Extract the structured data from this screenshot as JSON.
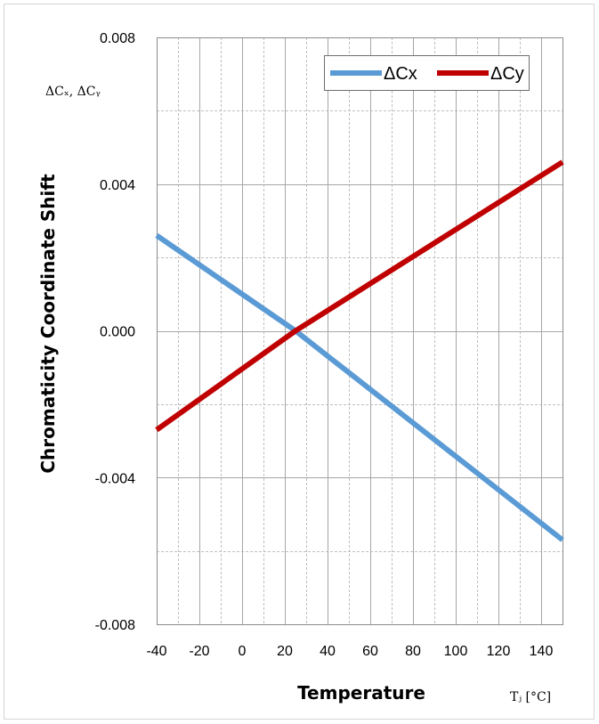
{
  "chart_data": {
    "type": "line",
    "x_axis": {
      "title": "Temperature",
      "unit_label": "Tⱼ [°C]",
      "range": [
        -40,
        150
      ],
      "tick_values": [
        -40,
        -20,
        0,
        20,
        40,
        60,
        80,
        100,
        120,
        140
      ],
      "tick_labels": [
        "-40",
        "-20",
        "0",
        "20",
        "40",
        "60",
        "80",
        "100",
        "120",
        "140"
      ],
      "minor_step": 10
    },
    "y_axis": {
      "title": "Chromaticity Coordinate Shift",
      "symbol_label": "ΔCₓ, ΔCᵧ",
      "range": [
        -0.008,
        0.008
      ],
      "tick_values": [
        -0.008,
        -0.004,
        0.0,
        0.004,
        0.008
      ],
      "tick_labels": [
        "-0.008",
        "-0.004",
        "0.000",
        "0.004",
        "0.008"
      ],
      "minor_step": 0.002
    },
    "grid": true,
    "legend_position": "top-right",
    "series": [
      {
        "name": "ΔCx",
        "color": "#5b9bd5",
        "x": [
          -40,
          25,
          150
        ],
        "y": [
          0.0026,
          0.0,
          -0.0057
        ]
      },
      {
        "name": "ΔCy",
        "color": "#c00000",
        "x": [
          -40,
          25,
          150
        ],
        "y": [
          -0.0027,
          0.0,
          0.0046
        ]
      }
    ]
  }
}
